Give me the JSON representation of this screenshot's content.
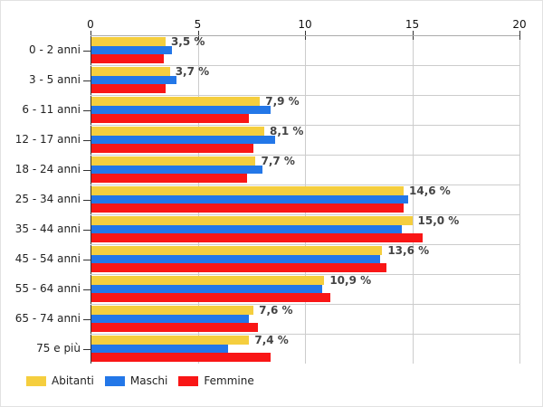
{
  "chart_data": {
    "type": "bar",
    "orientation": "horizontal",
    "title": "",
    "xlabel": "",
    "ylabel": "",
    "xlim": [
      0,
      20
    ],
    "x_ticks": [
      0,
      5,
      10,
      15,
      20
    ],
    "grid": true,
    "legend_position": "bottom",
    "categories": [
      "0 - 2 anni",
      "3 - 5 anni",
      "6 - 11 anni",
      "12 - 17 anni",
      "18 - 24 anni",
      "25 - 34 anni",
      "35 - 44 anni",
      "45 - 54 anni",
      "55 - 64 anni",
      "65 - 74 anni",
      "75 e più"
    ],
    "series": [
      {
        "name": "Abitanti",
        "color": "#F5CE3E",
        "values": [
          3.5,
          3.7,
          7.9,
          8.1,
          7.7,
          14.6,
          15.0,
          13.6,
          10.9,
          7.6,
          7.4
        ]
      },
      {
        "name": "Maschi",
        "color": "#2377E8",
        "values": [
          3.8,
          4.0,
          8.4,
          8.6,
          8.0,
          14.8,
          14.5,
          13.5,
          10.8,
          7.4,
          6.4
        ]
      },
      {
        "name": "Femmine",
        "color": "#F91616",
        "values": [
          3.4,
          3.5,
          7.4,
          7.6,
          7.3,
          14.6,
          15.5,
          13.8,
          11.2,
          7.8,
          8.4
        ]
      }
    ],
    "annotations": [
      "3,5 %",
      "3,7 %",
      "7,9 %",
      "8,1 %",
      "7,7 %",
      "14,6 %",
      "15,0 %",
      "13,6 %",
      "10,9 %",
      "7,6 %",
      "7,4 %"
    ],
    "annotation_series": "Abitanti"
  }
}
